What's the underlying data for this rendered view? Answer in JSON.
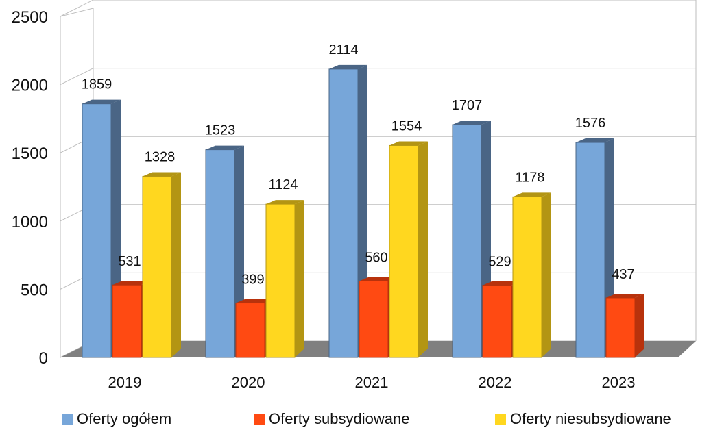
{
  "chart_data": {
    "type": "bar",
    "categories": [
      "2019",
      "2020",
      "2021",
      "2022",
      "2023"
    ],
    "series": [
      {
        "name": "Oferty ogółem",
        "values": [
          1859,
          1523,
          2114,
          1707,
          1576
        ],
        "color": "#77a6d9",
        "shade": "#4a6585"
      },
      {
        "name": "Oferty subsydiowane",
        "values": [
          531,
          399,
          560,
          529,
          437
        ],
        "color": "#ff4a12",
        "shade": "#b8320c"
      },
      {
        "name": "Oferty niesubsydiowane",
        "values": [
          1328,
          1124,
          1554,
          1178,
          null
        ],
        "color": "#ffd71f",
        "shade": "#b39513"
      }
    ],
    "data_labels": [
      [
        "1859",
        "1523",
        "2114",
        "1707",
        "1576"
      ],
      [
        "531",
        "399",
        "560",
        "529",
        "437"
      ],
      [
        "1328",
        "1124",
        "1554",
        "1178",
        ""
      ]
    ],
    "y_ticks": [
      "0",
      "500",
      "1000",
      "1500",
      "2000",
      "2500"
    ],
    "ylim": [
      0,
      2500
    ],
    "grid": true,
    "legend_position": "bottom",
    "title": "",
    "xlabel": "",
    "ylabel": "",
    "floor_color": "#808080"
  }
}
